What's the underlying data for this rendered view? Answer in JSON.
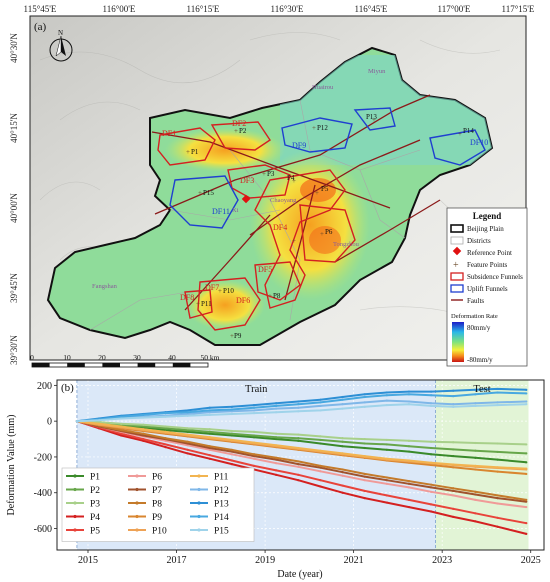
{
  "map": {
    "panel_label": "(a)",
    "north_label": "N",
    "top_ticks": [
      "115°45'E",
      "116°00'E",
      "116°15'E",
      "116°30'E",
      "116°45'E",
      "117°00'E",
      "117°15'E"
    ],
    "left_ticks": [
      "40°30'N",
      "40°15'N",
      "40°00'N",
      "39°45'N",
      "39°30'N"
    ],
    "scale_labels": [
      "0",
      "10",
      "20",
      "30",
      "40",
      "50 km"
    ],
    "place_names": {
      "huairou": "Huairou",
      "miyun": "Miyun",
      "chaoyang": "Chaoyang",
      "fangshan": "Fangshan",
      "tongzhou": "Tongzhou",
      "xicheng": "Xi"
    },
    "funnels": [
      "DF1",
      "DF2",
      "DF3",
      "DF4",
      "DF5",
      "DF6",
      "DF7",
      "DF8",
      "DF9",
      "DF10",
      "DF11"
    ],
    "points": [
      "P1",
      "P2",
      "P3",
      "P4",
      "P5",
      "P6",
      "P7",
      "P8",
      "P9",
      "P10",
      "P11",
      "P12",
      "P13",
      "P14",
      "P15"
    ],
    "legend": {
      "title": "Legend",
      "items": [
        "Beijing Plain",
        "Districts",
        "Reference Point",
        "Feature Points",
        "Subsidence Funnels",
        "Uplift Funnels",
        "Faults"
      ],
      "rate_title": "Deformation Rate",
      "rate_max": "80mm/y",
      "rate_min": "-80mm/y"
    },
    "colors": {
      "subsidence": "#d42020",
      "uplift": "#1f3fd0",
      "fault": "#8b1a1a",
      "reference": "#e01010"
    }
  },
  "chart_data": {
    "type": "line",
    "panel_label": "(b)",
    "xlabel": "Date (year)",
    "ylabel": "Deformation Value (mm)",
    "xlim": [
      2014.3,
      2025.3
    ],
    "ylim": [
      -720,
      230
    ],
    "xticks": [
      2015,
      2017,
      2019,
      2021,
      2023,
      2025
    ],
    "yticks": [
      200,
      0,
      -200,
      -400,
      -600
    ],
    "regions": [
      {
        "name": "Train",
        "start": 2014.75,
        "end": 2022.85,
        "color": "#dbe8f8"
      },
      {
        "name": "Test",
        "start": 2022.85,
        "end": 2024.95,
        "color": "#e2f4d6"
      }
    ],
    "x": [
      2014.75,
      2015.25,
      2015.75,
      2016.25,
      2016.75,
      2017.25,
      2017.75,
      2018.25,
      2018.75,
      2019.25,
      2019.75,
      2020.25,
      2020.75,
      2021.25,
      2021.75,
      2022.25,
      2022.75,
      2023.25,
      2023.75,
      2024.25,
      2024.9
    ],
    "series": [
      {
        "name": "P1",
        "color": "#3a8a2a",
        "values": [
          0,
          -10,
          -25,
          -35,
          -50,
          -60,
          -70,
          -80,
          -90,
          -100,
          -110,
          -125,
          -140,
          -150,
          -160,
          -170,
          -185,
          -195,
          -205,
          -215,
          -230
        ]
      },
      {
        "name": "P2",
        "color": "#67a64a",
        "values": [
          0,
          -5,
          -20,
          -30,
          -40,
          -50,
          -60,
          -70,
          -80,
          -90,
          -95,
          -105,
          -115,
          -125,
          -130,
          -140,
          -150,
          -158,
          -165,
          -172,
          -180
        ]
      },
      {
        "name": "P3",
        "color": "#a8d08a",
        "values": [
          0,
          -5,
          -15,
          -20,
          -30,
          -40,
          -45,
          -55,
          -60,
          -70,
          -75,
          -85,
          -95,
          -100,
          -105,
          -110,
          -115,
          -118,
          -122,
          -125,
          -130
        ]
      },
      {
        "name": "P4",
        "color": "#d42020",
        "values": [
          0,
          -40,
          -80,
          -110,
          -145,
          -180,
          -210,
          -240,
          -270,
          -300,
          -330,
          -365,
          -400,
          -430,
          -455,
          -480,
          -505,
          -535,
          -560,
          -590,
          -630
        ]
      },
      {
        "name": "P5",
        "color": "#e8433a",
        "values": [
          0,
          -35,
          -70,
          -100,
          -130,
          -160,
          -190,
          -220,
          -250,
          -275,
          -300,
          -330,
          -360,
          -390,
          -415,
          -440,
          -465,
          -490,
          -515,
          -540,
          -570
        ]
      },
      {
        "name": "P6",
        "color": "#f09a98",
        "values": [
          0,
          -30,
          -60,
          -85,
          -110,
          -135,
          -160,
          -185,
          -210,
          -235,
          -255,
          -280,
          -305,
          -330,
          -350,
          -370,
          -395,
          -415,
          -440,
          -460,
          -480
        ]
      },
      {
        "name": "P7",
        "color": "#a0522d",
        "values": [
          0,
          -30,
          -55,
          -80,
          -100,
          -125,
          -150,
          -170,
          -195,
          -215,
          -240,
          -260,
          -285,
          -310,
          -330,
          -350,
          -370,
          -390,
          -410,
          -430,
          -450
        ]
      },
      {
        "name": "P8",
        "color": "#c47a2a",
        "values": [
          0,
          -25,
          -50,
          -70,
          -95,
          -115,
          -140,
          -160,
          -185,
          -205,
          -225,
          -250,
          -270,
          -295,
          -315,
          -335,
          -355,
          -375,
          -395,
          -415,
          -440
        ]
      },
      {
        "name": "P9",
        "color": "#d9862f",
        "values": [
          0,
          -20,
          -40,
          -55,
          -70,
          -85,
          -100,
          -115,
          -130,
          -145,
          -160,
          -175,
          -190,
          -205,
          -220,
          -232,
          -245,
          -258,
          -270,
          -282,
          -295
        ]
      },
      {
        "name": "P10",
        "color": "#eea255",
        "values": [
          0,
          -20,
          -35,
          -50,
          -65,
          -80,
          -95,
          -110,
          -125,
          -140,
          -155,
          -170,
          -185,
          -200,
          -215,
          -225,
          -235,
          -245,
          -255,
          -262,
          -270
        ]
      },
      {
        "name": "P11",
        "color": "#f2b450",
        "values": [
          0,
          -15,
          -30,
          -45,
          -60,
          -75,
          -90,
          -105,
          -120,
          -135,
          -150,
          -165,
          -180,
          -195,
          -210,
          -220,
          -232,
          -242,
          -250,
          -258,
          -265
        ]
      },
      {
        "name": "P12",
        "color": "#7fb7e8",
        "values": [
          0,
          10,
          20,
          25,
          30,
          40,
          50,
          55,
          60,
          70,
          75,
          85,
          95,
          105,
          115,
          110,
          100,
          95,
          100,
          105,
          110
        ]
      },
      {
        "name": "P13",
        "color": "#2d8fd5",
        "values": [
          0,
          15,
          30,
          40,
          50,
          60,
          75,
          80,
          90,
          100,
          110,
          120,
          135,
          150,
          160,
          165,
          165,
          170,
          175,
          180,
          175
        ]
      },
      {
        "name": "P14",
        "color": "#48a8e0",
        "values": [
          0,
          10,
          25,
          35,
          45,
          50,
          60,
          65,
          75,
          85,
          95,
          105,
          120,
          135,
          145,
          150,
          145,
          140,
          150,
          160,
          155
        ]
      },
      {
        "name": "P15",
        "color": "#9fd3ea",
        "values": [
          0,
          5,
          15,
          20,
          25,
          30,
          35,
          40,
          45,
          50,
          55,
          60,
          70,
          80,
          90,
          95,
          85,
          80,
          85,
          90,
          95
        ]
      }
    ]
  }
}
